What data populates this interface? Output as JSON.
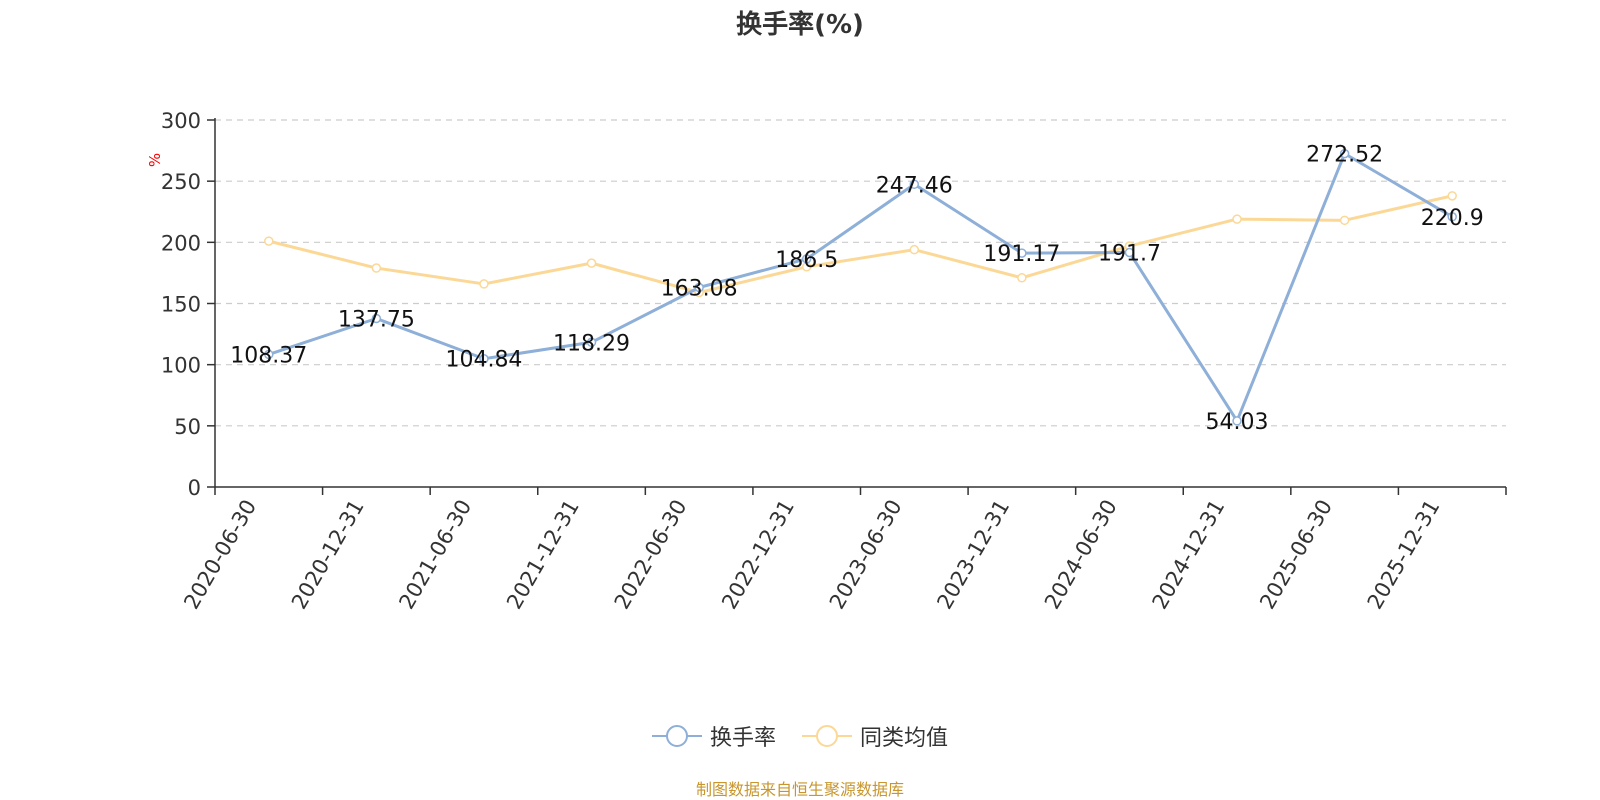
{
  "chart_data": {
    "type": "line",
    "title": "换手率(%)",
    "ylabel": "%",
    "ylim": [
      0,
      300
    ],
    "y_ticks": [
      0,
      50,
      100,
      150,
      200,
      250,
      300
    ],
    "categories": [
      "2020-06-30",
      "2020-12-31",
      "2021-06-30",
      "2021-12-31",
      "2022-06-30",
      "2022-12-31",
      "2023-06-30",
      "2023-12-31",
      "2024-06-30",
      "2024-12-31",
      "2025-06-30",
      "2025-12-31"
    ],
    "grid": true,
    "legend_position": "bottom",
    "series": [
      {
        "name": "换手率",
        "color": "#8eafd8",
        "values": [
          108.37,
          137.75,
          104.84,
          118.29,
          163.08,
          186.5,
          247.46,
          191.17,
          191.7,
          54.03,
          272.52,
          220.9
        ],
        "labels": [
          "108.37",
          "137.75",
          "104.84",
          "118.29",
          "163.08",
          "186.5",
          "247.46",
          "191.17",
          "191.7",
          "54.03",
          "272.52",
          "220.9"
        ]
      },
      {
        "name": "同类均值",
        "color": "#fbd896",
        "values": [
          201,
          179,
          166,
          183,
          159,
          180,
          194,
          171,
          197,
          219,
          218,
          238
        ]
      }
    ]
  },
  "source_note": "制图数据来自恒生聚源数据库",
  "colors": {
    "axis": "#333333",
    "grid": "#cccccc",
    "ylabel": "#ff0000",
    "source": "#c8962d"
  }
}
